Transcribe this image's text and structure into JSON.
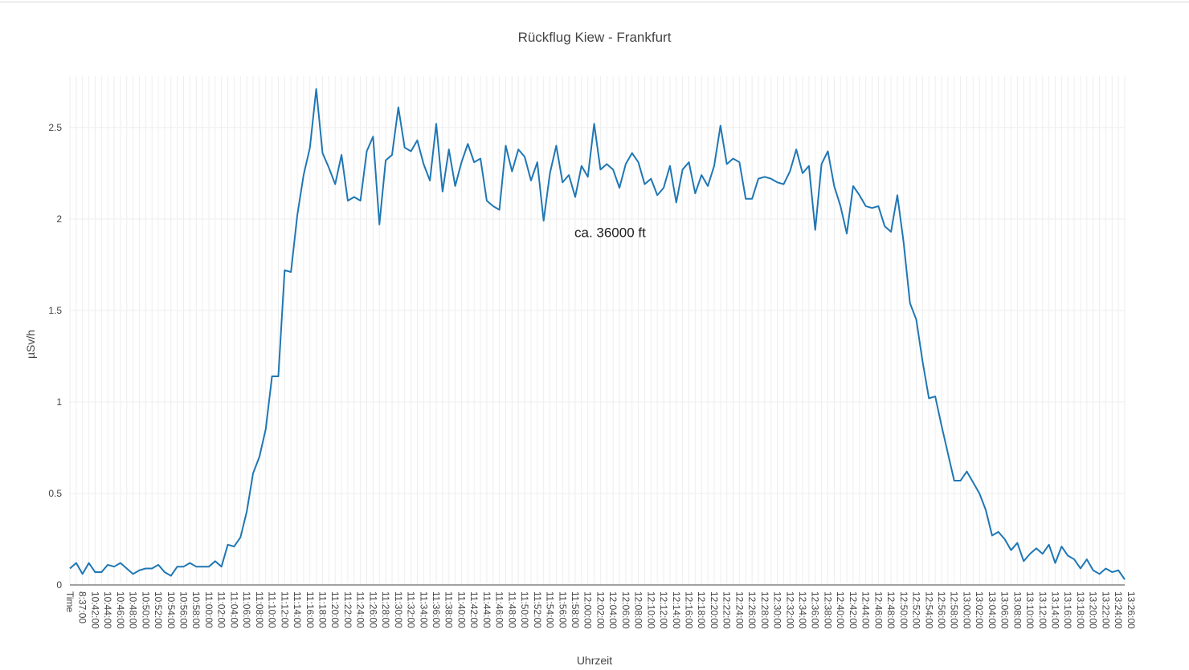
{
  "chart_data": {
    "type": "line",
    "title": "Rückflug Kiew - Frankfurt",
    "xlabel": "Uhrzeit",
    "ylabel": "µSv/h",
    "ylim": [
      0,
      2.78
    ],
    "yticks": [
      0,
      0.5,
      1,
      1.5,
      2,
      2.5
    ],
    "ytick_labels": [
      "0",
      "0.5",
      "1",
      "1.5",
      "2",
      "2.5"
    ],
    "grid": true,
    "x_tick_labels": [
      "Time",
      "8:37:00",
      "10:42:00",
      "10:44:00",
      "10:46:00",
      "10:48:00",
      "10:50:00",
      "10:52:00",
      "10:54:00",
      "10:56:00",
      "10:58:00",
      "11:00:00",
      "11:02:00",
      "11:04:00",
      "11:06:00",
      "11:08:00",
      "11:10:00",
      "11:12:00",
      "11:14:00",
      "11:16:00",
      "11:18:00",
      "11:20:00",
      "11:22:00",
      "11:24:00",
      "11:26:00",
      "11:28:00",
      "11:30:00",
      "11:32:00",
      "11:34:00",
      "11:36:00",
      "11:38:00",
      "11:40:00",
      "11:42:00",
      "11:44:00",
      "11:46:00",
      "11:48:00",
      "11:50:00",
      "11:52:00",
      "11:54:00",
      "11:56:00",
      "11:58:00",
      "12:00:00",
      "12:02:00",
      "12:04:00",
      "12:06:00",
      "12:08:00",
      "12:10:00",
      "12:12:00",
      "12:14:00",
      "12:16:00",
      "12:18:00",
      "12:20:00",
      "12:22:00",
      "12:24:00",
      "12:26:00",
      "12:28:00",
      "12:30:00",
      "12:32:00",
      "12:34:00",
      "12:36:00",
      "12:38:00",
      "12:40:00",
      "12:42:00",
      "12:44:00",
      "12:46:00",
      "12:48:00",
      "12:50:00",
      "12:52:00",
      "12:54:00",
      "12:56:00",
      "12:58:00",
      "13:00:00",
      "13:02:00",
      "13:04:00",
      "13:06:00",
      "13:08:00",
      "13:10:00",
      "13:12:00",
      "13:14:00",
      "13:16:00",
      "13:18:00",
      "13:20:00",
      "13:22:00",
      "13:24:00",
      "13:26:00"
    ],
    "annotations": [
      {
        "text": "ca. 36000 ft",
        "x_index": 84,
        "y": 1.9
      }
    ],
    "series": [
      {
        "color": "#1f77b4",
        "values": [
          0.09,
          0.12,
          0.06,
          0.12,
          0.07,
          0.07,
          0.11,
          0.1,
          0.12,
          0.09,
          0.06,
          0.08,
          0.09,
          0.09,
          0.11,
          0.07,
          0.05,
          0.1,
          0.1,
          0.12,
          0.1,
          0.1,
          0.1,
          0.13,
          0.1,
          0.22,
          0.21,
          0.26,
          0.4,
          0.61,
          0.7,
          0.85,
          1.14,
          1.14,
          1.72,
          1.71,
          2.02,
          2.24,
          2.39,
          2.71,
          2.36,
          2.28,
          2.19,
          2.35,
          2.1,
          2.12,
          2.1,
          2.37,
          2.45,
          1.97,
          2.32,
          2.35,
          2.61,
          2.39,
          2.37,
          2.43,
          2.3,
          2.21,
          2.52,
          2.15,
          2.38,
          2.18,
          2.31,
          2.41,
          2.31,
          2.33,
          2.1,
          2.07,
          2.05,
          2.4,
          2.26,
          2.38,
          2.34,
          2.21,
          2.31,
          1.99,
          2.25,
          2.4,
          2.2,
          2.24,
          2.12,
          2.29,
          2.23,
          2.52,
          2.27,
          2.3,
          2.27,
          2.17,
          2.3,
          2.36,
          2.31,
          2.19,
          2.22,
          2.13,
          2.17,
          2.29,
          2.09,
          2.27,
          2.31,
          2.14,
          2.24,
          2.18,
          2.29,
          2.51,
          2.3,
          2.33,
          2.31,
          2.11,
          2.11,
          2.22,
          2.23,
          2.22,
          2.2,
          2.19,
          2.26,
          2.38,
          2.25,
          2.29,
          1.94,
          2.3,
          2.37,
          2.18,
          2.07,
          1.92,
          2.18,
          2.13,
          2.07,
          2.06,
          2.07,
          1.96,
          1.93,
          2.13,
          1.87,
          1.54,
          1.45,
          1.22,
          1.02,
          1.03,
          0.87,
          0.72,
          0.57,
          0.57,
          0.62,
          0.56,
          0.5,
          0.41,
          0.27,
          0.29,
          0.25,
          0.19,
          0.23,
          0.13,
          0.17,
          0.2,
          0.17,
          0.22,
          0.12,
          0.21,
          0.16,
          0.14,
          0.09,
          0.14,
          0.08,
          0.06,
          0.09,
          0.07,
          0.08,
          0.03
        ]
      }
    ]
  }
}
